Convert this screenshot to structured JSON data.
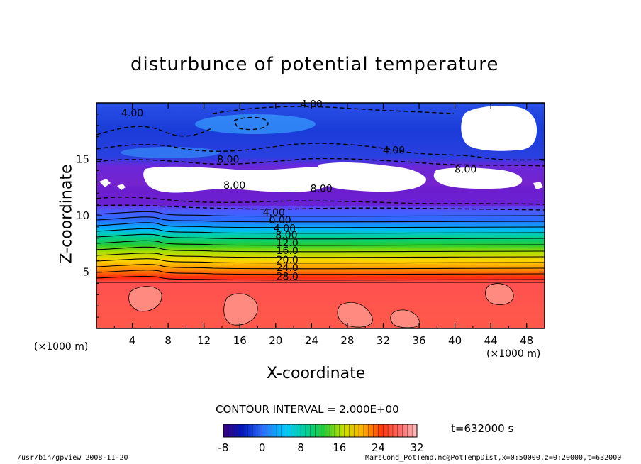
{
  "footer": {
    "left": "/usr/bin/gpview   2008-11-20",
    "right": "MarsCond_PotTemp.nc@PotTempDist,x=0:50000,z=0:20000,t=632000"
  },
  "colors": {
    "low": "#3a0080",
    "zero": "#2a6cff",
    "mid": "#22cc33",
    "high": "#ff4a2a",
    "top": "#ffb0b0",
    "missing": "#ffffff"
  },
  "chart_data": {
    "type": "heatmap",
    "title": "disturbunce of potential temperature",
    "xlabel": "X-coordinate",
    "ylabel": "Z-coordinate",
    "x_unit": "(×1000 m)",
    "y_unit": "(×1000 m)",
    "xlim": [
      0,
      50
    ],
    "ylim": [
      0,
      20
    ],
    "x_ticks": [
      4,
      8,
      12,
      16,
      20,
      24,
      28,
      32,
      36,
      40,
      44,
      48
    ],
    "y_ticks": [
      5,
      10,
      15
    ],
    "contour_interval_label": "CONTOUR INTERVAL = 2.000E+00",
    "time_label": "t=632000 s",
    "colorbar": {
      "range": [
        -8,
        32
      ],
      "ticks": [
        -8,
        0,
        8,
        16,
        24,
        32
      ]
    },
    "contour_labels": [
      {
        "text": "4.00",
        "x": 19.8,
        "z": 10.0
      },
      {
        "text": "0.00",
        "x": 20.5,
        "z": 9.3
      },
      {
        "text": "4.00",
        "x": 21.0,
        "z": 8.6
      },
      {
        "text": "8.00",
        "x": 21.2,
        "z": 8.0
      },
      {
        "text": "12.0",
        "x": 21.3,
        "z": 7.3
      },
      {
        "text": "16.0",
        "x": 21.3,
        "z": 6.6
      },
      {
        "text": "20.0",
        "x": 21.3,
        "z": 5.8
      },
      {
        "text": "24.0",
        "x": 21.3,
        "z": 5.1
      },
      {
        "text": "28.0",
        "x": 21.3,
        "z": 4.3
      },
      {
        "text": "4.00",
        "x": 4.0,
        "z": 18.8
      },
      {
        "text": "4.00",
        "x": 24.0,
        "z": 19.6
      },
      {
        "text": "4.00",
        "x": 33.2,
        "z": 15.5
      },
      {
        "text": "8.00",
        "x": 14.7,
        "z": 14.7
      },
      {
        "text": "8.00",
        "x": 15.4,
        "z": 12.4
      },
      {
        "text": "8.00",
        "x": 25.1,
        "z": 12.1
      },
      {
        "text": "8.00",
        "x": 41.2,
        "z": 13.8
      }
    ]
  }
}
